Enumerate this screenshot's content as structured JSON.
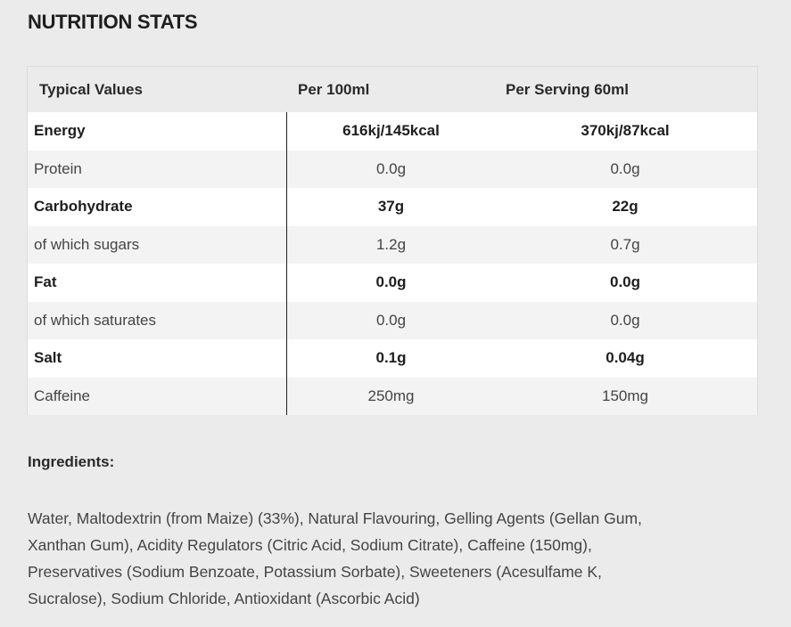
{
  "title": "NUTRITION STATS",
  "table": {
    "headers": [
      "Typical Values",
      "Per 100ml",
      "Per Serving 60ml"
    ],
    "rows": [
      {
        "name": "Energy",
        "per100": "616kj/145kcal",
        "serving": "370kj/87kcal",
        "bold": true
      },
      {
        "name": "Protein",
        "per100": "0.0g",
        "serving": "0.0g",
        "bold": false
      },
      {
        "name": "Carbohydrate",
        "per100": "37g",
        "serving": "22g",
        "bold": true
      },
      {
        "name": "of which sugars",
        "per100": "1.2g",
        "serving": "0.7g",
        "bold": false
      },
      {
        "name": "Fat",
        "per100": "0.0g",
        "serving": "0.0g",
        "bold": true
      },
      {
        "name": "of which saturates",
        "per100": "0.0g",
        "serving": "0.0g",
        "bold": false
      },
      {
        "name": "Salt",
        "per100": "0.1g",
        "serving": "0.04g",
        "bold": true
      },
      {
        "name": "Caffeine",
        "per100": "250mg",
        "serving": "150mg",
        "bold": false
      }
    ]
  },
  "ingredients": {
    "title": "Ingredients:",
    "lines": [
      "Water, Maltodextrin (from Maize) (33%), Natural Flavouring, Gelling Agents (Gellan Gum,",
      "Xanthan Gum), Acidity Regulators (Citric Acid, Sodium Citrate), Caffeine (150mg),",
      "Preservatives (Sodium Benzoate, Potassium Sorbate), Sweeteners (Acesulfame K,",
      "Sucralose), Sodium Chloride, Antioxidant (Ascorbic Acid)"
    ]
  }
}
